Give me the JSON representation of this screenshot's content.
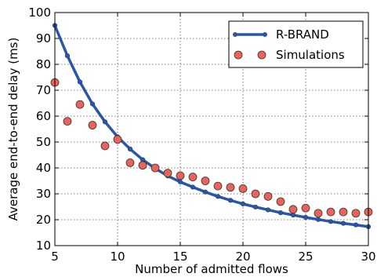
{
  "chart_data": {
    "type": "line",
    "xlabel": "Number of admitted flows",
    "ylabel": "Average end-to-end delay (ms)",
    "xlim": [
      5,
      30
    ],
    "ylim": [
      10,
      100
    ],
    "xticks": [
      5,
      10,
      15,
      20,
      25,
      30
    ],
    "yticks": [
      10,
      20,
      30,
      40,
      50,
      60,
      70,
      80,
      90,
      100
    ],
    "grid": true,
    "legend_position": "top-right",
    "series": [
      {
        "name": "R-BRAND",
        "style": "line-with-markers",
        "color": "#2a56a8",
        "x": [
          5,
          6,
          7,
          8,
          9,
          10,
          11,
          12,
          13,
          14,
          15,
          16,
          17,
          18,
          19,
          20,
          21,
          22,
          23,
          24,
          25,
          26,
          27,
          28,
          29,
          30
        ],
        "y": [
          95,
          83.3,
          73.2,
          64.7,
          57.8,
          52,
          47.3,
          43.2,
          39.8,
          36.9,
          34.6,
          32.6,
          30.7,
          29,
          27.5,
          26.1,
          24.9,
          23.8,
          22.7,
          21.8,
          20.9,
          20.1,
          19.3,
          18.6,
          18,
          17.3
        ]
      },
      {
        "name": "Simulations",
        "style": "scatter",
        "color": "#e8635a",
        "x": [
          5,
          6,
          7,
          8,
          9,
          10,
          11,
          12,
          13,
          14,
          15,
          16,
          17,
          18,
          19,
          20,
          21,
          22,
          23,
          24,
          25,
          26,
          27,
          28,
          29,
          30
        ],
        "y": [
          73,
          58,
          64.5,
          56.5,
          48.5,
          51,
          42,
          41,
          40,
          38,
          37,
          36.5,
          35,
          33,
          32.5,
          32,
          30,
          29,
          27,
          24,
          24.5,
          22.5,
          23,
          23,
          22.5,
          23
        ]
      }
    ]
  }
}
